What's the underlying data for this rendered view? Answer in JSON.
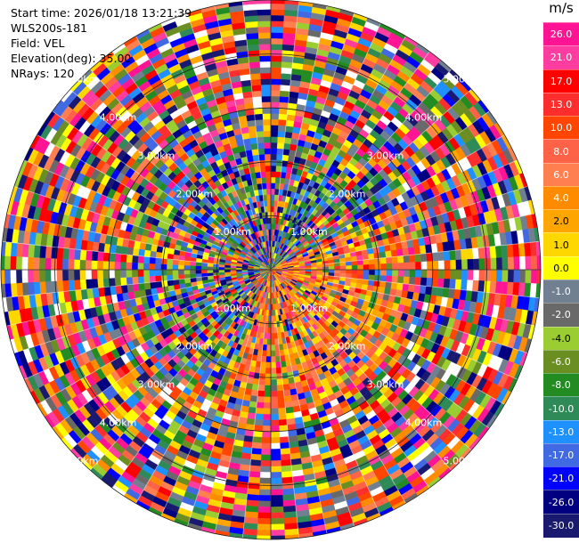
{
  "header": {
    "start_time": "Start time: 2026/01/18 13:21:39",
    "instrument": "WLS200s-181",
    "field": "Field: VEL",
    "elevation": "Elevation(deg): 35.00",
    "nrays": "NRays: 120"
  },
  "colorbar": {
    "unit": "m/s",
    "ticks": [
      "26.0",
      "21.0",
      "17.0",
      "13.0",
      "10.0",
      "8.0",
      "6.0",
      "4.0",
      "2.0",
      "1.0",
      "0.0",
      "-1.0",
      "-2.0",
      "-4.0",
      "-6.0",
      "-8.0",
      "-10.0",
      "-13.0",
      "-17.0",
      "-21.0",
      "-26.0",
      "-30.0"
    ],
    "colors": [
      "#ff1493",
      "#ff3ca0",
      "#ff0000",
      "#ff2e2e",
      "#ff4500",
      "#ff6347",
      "#ff7f50",
      "#ff8c00",
      "#ffa500",
      "#ffd700",
      "#ffff00",
      "#708090",
      "#696969",
      "#9acd32",
      "#6b8e23",
      "#228b22",
      "#2e8b57",
      "#1e90ff",
      "#4169e1",
      "#0000ff",
      "#000080",
      "#191970"
    ]
  },
  "chart_data": {
    "type": "polar-ppi",
    "rays": 120,
    "range_rings_km": [
      1,
      2,
      3,
      4,
      5
    ],
    "range_labels": [
      "1.00km",
      "2.00km",
      "3.00km",
      "4.00km",
      "5.00km"
    ],
    "diagonal_directions_deg": [
      45,
      135,
      225,
      315
    ],
    "max_range_km": 5,
    "vmin": -30,
    "vmax": 26
  }
}
